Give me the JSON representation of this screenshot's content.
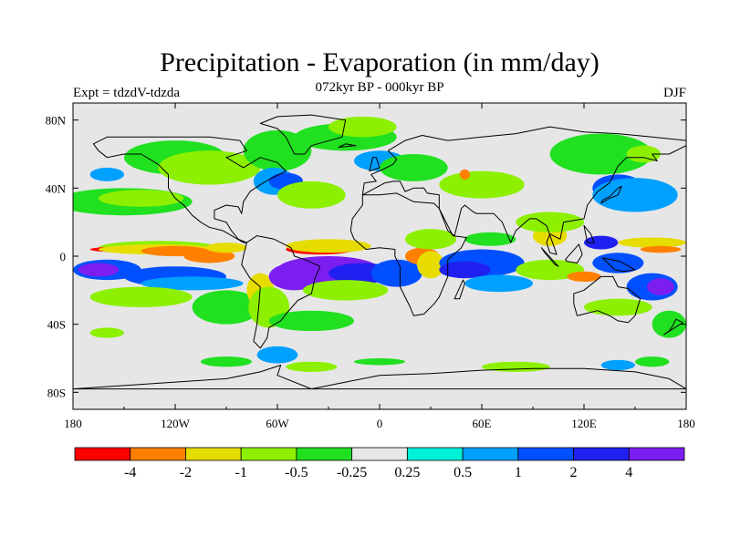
{
  "header": {
    "title": "Precipitation - Evaporation (in mm/day)",
    "subtitle": "072kyr BP - 000kyr BP",
    "left_label": "Expt = tdzdV-tdzda",
    "right_label": "DJF"
  },
  "axes": {
    "x_ticks": [
      "180",
      "120W",
      "60W",
      "0",
      "60E",
      "120E",
      "180"
    ],
    "y_ticks": [
      "80N",
      "40N",
      "0",
      "40S",
      "80S"
    ]
  },
  "colorbar": {
    "colors": [
      "#ff0000",
      "#ff8000",
      "#e6dc00",
      "#8cf000",
      "#20e020",
      "#e6e6e6",
      "#00f0d8",
      "#00a0ff",
      "#0050ff",
      "#2020f0",
      "#7d1ef0"
    ],
    "labels": [
      "-4",
      "-2",
      "-1",
      "-0.5",
      "-0.25",
      "0.25",
      "0.5",
      "1",
      "2",
      "4"
    ]
  },
  "map": {
    "background_color": "#e6e6e6",
    "blobs": [
      {
        "c": "#20e020",
        "lon": -150,
        "lat": 32,
        "rx": 40,
        "ry": 8
      },
      {
        "c": "#8cf000",
        "lon": -140,
        "lat": 34,
        "rx": 25,
        "ry": 5
      },
      {
        "c": "#00a0ff",
        "lon": -160,
        "lat": 48,
        "rx": 10,
        "ry": 4
      },
      {
        "c": "#20e020",
        "lon": -120,
        "lat": 58,
        "rx": 30,
        "ry": 10
      },
      {
        "c": "#8cf000",
        "lon": -100,
        "lat": 52,
        "rx": 30,
        "ry": 10
      },
      {
        "c": "#20e020",
        "lon": -60,
        "lat": 62,
        "rx": 20,
        "ry": 12
      },
      {
        "c": "#00a0ff",
        "lon": -62,
        "lat": 44,
        "rx": 12,
        "ry": 8
      },
      {
        "c": "#0050ff",
        "lon": -55,
        "lat": 44,
        "rx": 10,
        "ry": 5
      },
      {
        "c": "#8cf000",
        "lon": -40,
        "lat": 36,
        "rx": 20,
        "ry": 8
      },
      {
        "c": "#20e020",
        "lon": -20,
        "lat": 70,
        "rx": 30,
        "ry": 8
      },
      {
        "c": "#8cf000",
        "lon": -10,
        "lat": 76,
        "rx": 20,
        "ry": 6
      },
      {
        "c": "#00a0ff",
        "lon": 0,
        "lat": 56,
        "rx": 15,
        "ry": 6
      },
      {
        "c": "#20e020",
        "lon": 20,
        "lat": 52,
        "rx": 20,
        "ry": 8
      },
      {
        "c": "#8cf000",
        "lon": 60,
        "lat": 42,
        "rx": 25,
        "ry": 8
      },
      {
        "c": "#ff8000",
        "lon": 50,
        "lat": 48,
        "rx": 3,
        "ry": 3
      },
      {
        "c": "#0050ff",
        "lon": 140,
        "lat": 40,
        "rx": 15,
        "ry": 8
      },
      {
        "c": "#00a0ff",
        "lon": 150,
        "lat": 36,
        "rx": 25,
        "ry": 10
      },
      {
        "c": "#20e020",
        "lon": 130,
        "lat": 60,
        "rx": 30,
        "ry": 12
      },
      {
        "c": "#8cf000",
        "lon": 155,
        "lat": 60,
        "rx": 10,
        "ry": 5
      },
      {
        "c": "#e6dc00",
        "lon": 100,
        "lat": 12,
        "rx": 10,
        "ry": 6
      },
      {
        "c": "#8cf000",
        "lon": 100,
        "lat": 20,
        "rx": 20,
        "ry": 6
      },
      {
        "c": "#8cf000",
        "lon": -130,
        "lat": 5,
        "rx": 35,
        "ry": 4
      },
      {
        "c": "#ff0000",
        "lon": -140,
        "lat": 4,
        "rx": 30,
        "ry": 2
      },
      {
        "c": "#e6dc00",
        "lon": -130,
        "lat": 4,
        "rx": 35,
        "ry": 3
      },
      {
        "c": "#ff8000",
        "lon": -120,
        "lat": 3,
        "rx": 20,
        "ry": 3
      },
      {
        "c": "#ff8000",
        "lon": -100,
        "lat": 0,
        "rx": 15,
        "ry": 4
      },
      {
        "c": "#e6dc00",
        "lon": -90,
        "lat": 5,
        "rx": 12,
        "ry": 3
      },
      {
        "c": "#0050ff",
        "lon": -160,
        "lat": -8,
        "rx": 20,
        "ry": 6
      },
      {
        "c": "#7d1ef0",
        "lon": -165,
        "lat": -8,
        "rx": 12,
        "ry": 4
      },
      {
        "c": "#0050ff",
        "lon": -120,
        "lat": -12,
        "rx": 30,
        "ry": 6
      },
      {
        "c": "#00a0ff",
        "lon": -110,
        "lat": -16,
        "rx": 30,
        "ry": 4
      },
      {
        "c": "#8cf000",
        "lon": -140,
        "lat": -24,
        "rx": 30,
        "ry": 6
      },
      {
        "c": "#20e020",
        "lon": -90,
        "lat": -30,
        "rx": 20,
        "ry": 10
      },
      {
        "c": "#e6dc00",
        "lon": -70,
        "lat": -20,
        "rx": 8,
        "ry": 10
      },
      {
        "c": "#8cf000",
        "lon": -65,
        "lat": -30,
        "rx": 12,
        "ry": 12
      },
      {
        "c": "#ff0000",
        "lon": -35,
        "lat": 4,
        "rx": 20,
        "ry": 3
      },
      {
        "c": "#e6dc00",
        "lon": -30,
        "lat": 6,
        "rx": 25,
        "ry": 4
      },
      {
        "c": "#7d1ef0",
        "lon": -30,
        "lat": -8,
        "rx": 30,
        "ry": 8
      },
      {
        "c": "#7d1ef0",
        "lon": -50,
        "lat": -12,
        "rx": 15,
        "ry": 8
      },
      {
        "c": "#2020f0",
        "lon": -10,
        "lat": -10,
        "rx": 20,
        "ry": 6
      },
      {
        "c": "#0050ff",
        "lon": 10,
        "lat": -10,
        "rx": 15,
        "ry": 8
      },
      {
        "c": "#8cf000",
        "lon": -20,
        "lat": -20,
        "rx": 25,
        "ry": 6
      },
      {
        "c": "#20e020",
        "lon": -40,
        "lat": -38,
        "rx": 25,
        "ry": 6
      },
      {
        "c": "#ff8000",
        "lon": 25,
        "lat": 0,
        "rx": 10,
        "ry": 5
      },
      {
        "c": "#e6dc00",
        "lon": 30,
        "lat": -5,
        "rx": 8,
        "ry": 8
      },
      {
        "c": "#8cf000",
        "lon": 30,
        "lat": 10,
        "rx": 15,
        "ry": 6
      },
      {
        "c": "#0050ff",
        "lon": 60,
        "lat": -4,
        "rx": 25,
        "ry": 8
      },
      {
        "c": "#2020f0",
        "lon": 50,
        "lat": -8,
        "rx": 15,
        "ry": 5
      },
      {
        "c": "#00a0ff",
        "lon": 70,
        "lat": -16,
        "rx": 20,
        "ry": 5
      },
      {
        "c": "#20e020",
        "lon": 65,
        "lat": 10,
        "rx": 15,
        "ry": 4
      },
      {
        "c": "#8cf000",
        "lon": 100,
        "lat": -8,
        "rx": 20,
        "ry": 6
      },
      {
        "c": "#ff8000",
        "lon": 120,
        "lat": -12,
        "rx": 10,
        "ry": 3
      },
      {
        "c": "#0050ff",
        "lon": 140,
        "lat": -4,
        "rx": 15,
        "ry": 6
      },
      {
        "c": "#2020f0",
        "lon": 130,
        "lat": 8,
        "rx": 10,
        "ry": 4
      },
      {
        "c": "#e6dc00",
        "lon": 160,
        "lat": 8,
        "rx": 20,
        "ry": 3
      },
      {
        "c": "#ff8000",
        "lon": 165,
        "lat": 4,
        "rx": 12,
        "ry": 2
      },
      {
        "c": "#0050ff",
        "lon": 160,
        "lat": -18,
        "rx": 15,
        "ry": 8
      },
      {
        "c": "#7d1ef0",
        "lon": 165,
        "lat": -18,
        "rx": 8,
        "ry": 5
      },
      {
        "c": "#8cf000",
        "lon": 140,
        "lat": -30,
        "rx": 20,
        "ry": 5
      },
      {
        "c": "#20e020",
        "lon": 170,
        "lat": -40,
        "rx": 10,
        "ry": 8
      },
      {
        "c": "#8cf000",
        "lon": -160,
        "lat": -45,
        "rx": 10,
        "ry": 3
      },
      {
        "c": "#00a0ff",
        "lon": -60,
        "lat": -58,
        "rx": 12,
        "ry": 5
      },
      {
        "c": "#20e020",
        "lon": -90,
        "lat": -62,
        "rx": 15,
        "ry": 3
      },
      {
        "c": "#8cf000",
        "lon": -40,
        "lat": -65,
        "rx": 15,
        "ry": 3
      },
      {
        "c": "#20e020",
        "lon": 0,
        "lat": -62,
        "rx": 15,
        "ry": 2
      },
      {
        "c": "#8cf000",
        "lon": 80,
        "lat": -65,
        "rx": 20,
        "ry": 3
      },
      {
        "c": "#00a0ff",
        "lon": 140,
        "lat": -64,
        "rx": 10,
        "ry": 3
      },
      {
        "c": "#20e020",
        "lon": 160,
        "lat": -62,
        "rx": 10,
        "ry": 3
      }
    ],
    "land": [
      [
        [
          -168,
          66
        ],
        [
          -160,
          70
        ],
        [
          -140,
          70
        ],
        [
          -125,
          70
        ],
        [
          -100,
          70
        ],
        [
          -82,
          68
        ],
        [
          -78,
          62
        ],
        [
          -90,
          58
        ],
        [
          -80,
          52
        ],
        [
          -70,
          58
        ],
        [
          -60,
          55
        ],
        [
          -55,
          50
        ],
        [
          -65,
          45
        ],
        [
          -70,
          42
        ],
        [
          -76,
          38
        ],
        [
          -80,
          32
        ],
        [
          -81,
          25
        ],
        [
          -83,
          29
        ],
        [
          -90,
          30
        ],
        [
          -97,
          27
        ],
        [
          -97,
          22
        ],
        [
          -90,
          20
        ],
        [
          -87,
          15
        ],
        [
          -83,
          10
        ],
        [
          -78,
          8
        ],
        [
          -80,
          8
        ],
        [
          -85,
          11
        ],
        [
          -92,
          15
        ],
        [
          -100,
          17
        ],
        [
          -105,
          20
        ],
        [
          -110,
          24
        ],
        [
          -115,
          30
        ],
        [
          -120,
          34
        ],
        [
          -124,
          40
        ],
        [
          -124,
          48
        ],
        [
          -130,
          54
        ],
        [
          -140,
          60
        ],
        [
          -150,
          60
        ],
        [
          -160,
          58
        ],
        [
          -165,
          62
        ]
      ],
      [
        [
          -78,
          8
        ],
        [
          -72,
          12
        ],
        [
          -62,
          10
        ],
        [
          -52,
          5
        ],
        [
          -50,
          0
        ],
        [
          -44,
          -2
        ],
        [
          -35,
          -6
        ],
        [
          -38,
          -13
        ],
        [
          -40,
          -22
        ],
        [
          -48,
          -26
        ],
        [
          -55,
          -34
        ],
        [
          -58,
          -38
        ],
        [
          -65,
          -42
        ],
        [
          -66,
          -48
        ],
        [
          -70,
          -54
        ],
        [
          -74,
          -50
        ],
        [
          -72,
          -40
        ],
        [
          -71,
          -30
        ],
        [
          -70,
          -18
        ],
        [
          -76,
          -13
        ],
        [
          -81,
          -5
        ],
        [
          -80,
          0
        ]
      ],
      [
        [
          -10,
          36
        ],
        [
          0,
          36
        ],
        [
          10,
          37
        ],
        [
          20,
          32
        ],
        [
          32,
          31
        ],
        [
          35,
          28
        ],
        [
          43,
          12
        ],
        [
          51,
          11
        ],
        [
          48,
          5
        ],
        [
          40,
          -2
        ],
        [
          40,
          -12
        ],
        [
          35,
          -24
        ],
        [
          32,
          -28
        ],
        [
          26,
          -34
        ],
        [
          20,
          -35
        ],
        [
          18,
          -30
        ],
        [
          12,
          -18
        ],
        [
          12,
          -6
        ],
        [
          9,
          0
        ],
        [
          9,
          4
        ],
        [
          0,
          5
        ],
        [
          -8,
          4
        ],
        [
          -15,
          10
        ],
        [
          -17,
          15
        ],
        [
          -16,
          22
        ],
        [
          -10,
          30
        ]
      ],
      [
        [
          -10,
          36
        ],
        [
          -9,
          43
        ],
        [
          -2,
          44
        ],
        [
          -5,
          48
        ],
        [
          2,
          51
        ],
        [
          8,
          54
        ],
        [
          10,
          57
        ],
        [
          5,
          62
        ],
        [
          15,
          68
        ],
        [
          25,
          71
        ],
        [
          40,
          68
        ],
        [
          60,
          70
        ],
        [
          80,
          72
        ],
        [
          100,
          76
        ],
        [
          120,
          73
        ],
        [
          140,
          72
        ],
        [
          160,
          70
        ],
        [
          180,
          68
        ],
        [
          180,
          65
        ],
        [
          170,
          60
        ],
        [
          160,
          60
        ],
        [
          163,
          56
        ],
        [
          155,
          58
        ],
        [
          145,
          58
        ],
        [
          140,
          53
        ],
        [
          135,
          43
        ],
        [
          128,
          38
        ],
        [
          122,
          30
        ],
        [
          120,
          22
        ],
        [
          108,
          20
        ],
        [
          106,
          10
        ],
        [
          100,
          13
        ],
        [
          98,
          8
        ],
        [
          100,
          2
        ],
        [
          104,
          1
        ],
        [
          98,
          18
        ],
        [
          92,
          22
        ],
        [
          88,
          22
        ],
        [
          80,
          15
        ],
        [
          77,
          8
        ],
        [
          72,
          20
        ],
        [
          67,
          25
        ],
        [
          57,
          25
        ],
        [
          55,
          26
        ],
        [
          50,
          30
        ],
        [
          48,
          28
        ],
        [
          44,
          12
        ],
        [
          40,
          15
        ],
        [
          35,
          28
        ],
        [
          35,
          36
        ],
        [
          28,
          37
        ],
        [
          26,
          40
        ],
        [
          20,
          40
        ],
        [
          15,
          38
        ],
        [
          12,
          44
        ],
        [
          8,
          44
        ],
        [
          3,
          43
        ]
      ],
      [
        [
          114,
          -22
        ],
        [
          120,
          -20
        ],
        [
          130,
          -12
        ],
        [
          137,
          -12
        ],
        [
          140,
          -18
        ],
        [
          146,
          -19
        ],
        [
          153,
          -25
        ],
        [
          150,
          -35
        ],
        [
          146,
          -39
        ],
        [
          140,
          -38
        ],
        [
          135,
          -35
        ],
        [
          128,
          -32
        ],
        [
          116,
          -35
        ],
        [
          114,
          -28
        ]
      ],
      [
        [
          -50,
          60
        ],
        [
          -44,
          60
        ],
        [
          -40,
          65
        ],
        [
          -22,
          70
        ],
        [
          -20,
          80
        ],
        [
          -40,
          83
        ],
        [
          -60,
          82
        ],
        [
          -70,
          78
        ],
        [
          -60,
          75
        ],
        [
          -55,
          70
        ]
      ],
      [
        [
          -180,
          -78
        ],
        [
          -150,
          -76
        ],
        [
          -120,
          -74
        ],
        [
          -90,
          -72
        ],
        [
          -70,
          -68
        ],
        [
          -58,
          -64
        ],
        [
          -60,
          -70
        ],
        [
          -40,
          -78
        ],
        [
          -20,
          -74
        ],
        [
          0,
          -70
        ],
        [
          30,
          -69
        ],
        [
          60,
          -67
        ],
        [
          90,
          -66
        ],
        [
          120,
          -66
        ],
        [
          150,
          -68
        ],
        [
          170,
          -72
        ],
        [
          180,
          -78
        ]
      ],
      [
        [
          -6,
          50
        ],
        [
          -4,
          58
        ],
        [
          -2,
          58
        ],
        [
          0,
          52
        ]
      ],
      [
        [
          130,
          31
        ],
        [
          135,
          34
        ],
        [
          140,
          36
        ],
        [
          142,
          41
        ],
        [
          140,
          40
        ],
        [
          135,
          35
        ],
        [
          131,
          33
        ]
      ],
      [
        [
          95,
          5
        ],
        [
          105,
          -6
        ],
        [
          103,
          -5
        ],
        [
          97,
          2
        ]
      ],
      [
        [
          109,
          -2
        ],
        [
          117,
          7
        ],
        [
          119,
          1
        ],
        [
          116,
          -4
        ],
        [
          110,
          -3
        ]
      ],
      [
        [
          131,
          -1
        ],
        [
          141,
          -3
        ],
        [
          150,
          -8
        ],
        [
          143,
          -9
        ],
        [
          138,
          -8
        ]
      ],
      [
        [
          172,
          -41
        ],
        [
          174,
          -37
        ],
        [
          178,
          -39
        ],
        [
          167,
          -46
        ],
        [
          170,
          -44
        ]
      ],
      [
        [
          44,
          -25
        ],
        [
          49,
          -14
        ],
        [
          50,
          -16
        ],
        [
          47,
          -25
        ]
      ],
      [
        [
          -24,
          64
        ],
        [
          -14,
          65
        ],
        [
          -20,
          66
        ]
      ],
      [
        [
          120,
          18
        ],
        [
          124,
          13
        ],
        [
          126,
          8
        ],
        [
          122,
          8
        ]
      ]
    ]
  }
}
